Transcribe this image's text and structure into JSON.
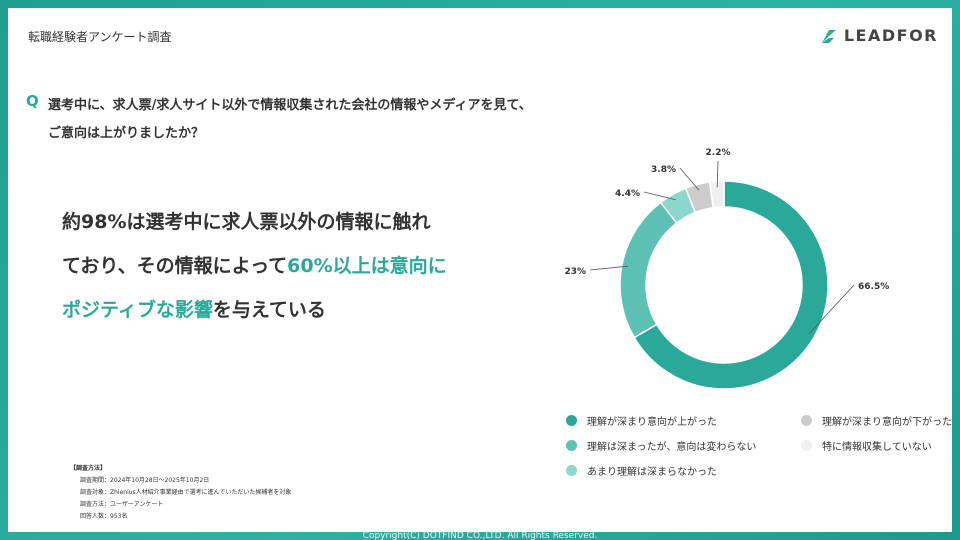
{
  "header": {
    "title": "転職経験者アンケート調査"
  },
  "logo": {
    "text": "LEADFOR"
  },
  "question": {
    "mark": "Q",
    "line1": "選考中に、求人票/求人サイト以外で情報収集された会社の情報やメディアを見て、",
    "line2": "ご意向は上がりましたか？"
  },
  "headline": {
    "part1": "約98%は選考中に求人票以外の情報に触れ",
    "part2": "ており、その情報によって",
    "highlight1": "60%以上は意向に",
    "highlight2": "ポジティブな影響",
    "part3": "を与えている"
  },
  "colors": {
    "accent": "#2aa99b",
    "slices": [
      "#2aa99b",
      "#5cc0b5",
      "#8dd6cd",
      "#cccccc",
      "#efefef"
    ]
  },
  "chart_data": {
    "type": "pie",
    "variant": "donut",
    "categories": [
      "理解が深まり意向が上がった",
      "理解は深まったが、意向は変わらない",
      "あまり理解は深まらなかった",
      "理解が深まり意向が下がった",
      "特に情報収集していない"
    ],
    "values": [
      66.5,
      23,
      4.4,
      3.8,
      2.2
    ],
    "labels": [
      "66.5%",
      "23%",
      "4.4%",
      "3.8%",
      "2.2%"
    ],
    "legend_position": "bottom"
  },
  "method": {
    "title": "【調査方法】",
    "lines": [
      "調査期間：2024年10月28日〜2025年10月2日",
      "調査対象：Zhienius人材紹介事業経由で選考に進んでいただいた候補者を対象",
      "調査方法：ユーザーアンケート",
      "回答人数：953名"
    ]
  },
  "footer": {
    "copyright": "Copyright(C) DOTFIND CO.,LTD. All Rights Reserved."
  }
}
